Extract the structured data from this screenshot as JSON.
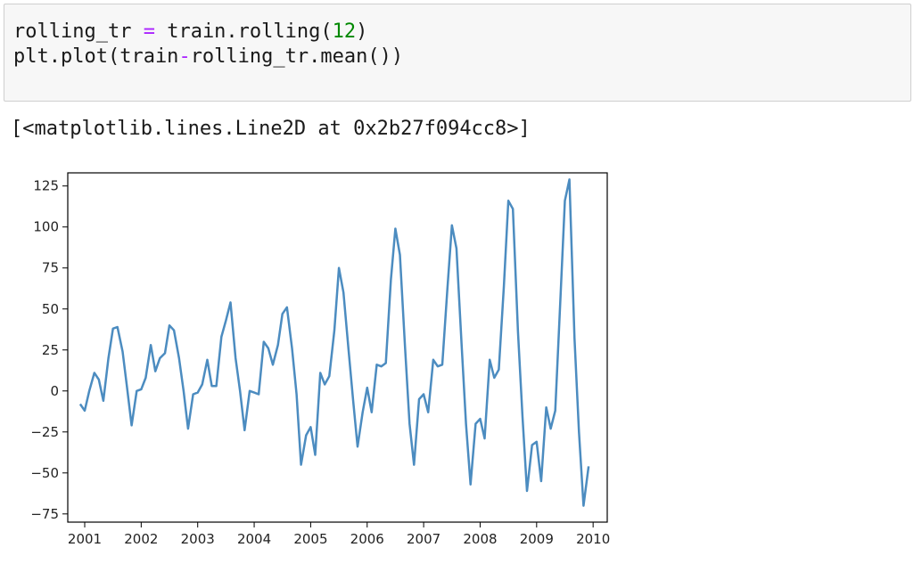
{
  "code": {
    "line1": {
      "var": "rolling_tr",
      "op": "=",
      "call": "train.rolling(",
      "arg": "12",
      "close": ")"
    },
    "line2": {
      "pre": "plt.plot(train",
      "op": "-",
      "post": "rolling_tr.mean())"
    }
  },
  "output": {
    "text": "[<matplotlib.lines.Line2D at 0x2b27f094cc8>]"
  },
  "colors": {
    "line": "#4c8cc0",
    "axes": "#000000"
  },
  "chart_data": {
    "type": "line",
    "xlabel": "",
    "ylabel": "",
    "xlim": [
      2000.7,
      2010.25
    ],
    "ylim": [
      -80,
      133
    ],
    "xticks": [
      2001,
      2002,
      2003,
      2004,
      2005,
      2006,
      2007,
      2008,
      2009,
      2010
    ],
    "xtick_labels": [
      "2001",
      "2002",
      "2003",
      "2004",
      "2005",
      "2006",
      "2007",
      "2008",
      "2009",
      "2010"
    ],
    "yticks": [
      125,
      100,
      75,
      50,
      25,
      0,
      -25,
      -50,
      -75
    ],
    "ytick_labels": [
      "125",
      "100",
      "75",
      "50",
      "25",
      "0",
      "−25",
      "−50",
      "−75"
    ],
    "series": [
      {
        "x": [
          2000.92,
          2001.0,
          2001.08,
          2001.17,
          2001.25,
          2001.33,
          2001.42,
          2001.5,
          2001.58,
          2001.67,
          2001.75,
          2001.83,
          2001.92,
          2002.0,
          2002.08,
          2002.17,
          2002.25,
          2002.33,
          2002.42,
          2002.5,
          2002.58,
          2002.67,
          2002.75,
          2002.83,
          2002.92,
          2003.0,
          2003.08,
          2003.17,
          2003.25,
          2003.33,
          2003.42,
          2003.5,
          2003.58,
          2003.67,
          2003.75,
          2003.83,
          2003.92,
          2004.0,
          2004.08,
          2004.17,
          2004.25,
          2004.33,
          2004.42,
          2004.5,
          2004.58,
          2004.67,
          2004.75,
          2004.83,
          2004.92,
          2005.0,
          2005.08,
          2005.17,
          2005.25,
          2005.33,
          2005.42,
          2005.5,
          2005.58,
          2005.67,
          2005.75,
          2005.83,
          2005.92,
          2006.0,
          2006.08,
          2006.17,
          2006.25,
          2006.33,
          2006.42,
          2006.5,
          2006.58,
          2006.67,
          2006.75,
          2006.83,
          2006.92,
          2007.0,
          2007.08,
          2007.17,
          2007.25,
          2007.33,
          2007.42,
          2007.5,
          2007.58,
          2007.67,
          2007.75,
          2007.83,
          2007.92,
          2008.0,
          2008.08,
          2008.17,
          2008.25,
          2008.33,
          2008.42,
          2008.5,
          2008.58,
          2008.67,
          2008.75,
          2008.83,
          2008.92,
          2009.0,
          2009.08,
          2009.17,
          2009.25,
          2009.33,
          2009.42,
          2009.5,
          2009.58,
          2009.67,
          2009.75,
          2009.83,
          2009.92
        ],
        "y": [
          -8,
          -12,
          0,
          11,
          7,
          -6,
          20,
          38,
          39,
          24,
          2,
          -21,
          0,
          1,
          8,
          28,
          12,
          20,
          23,
          40,
          37,
          20,
          0,
          -23,
          -2,
          -1,
          4,
          19,
          3,
          3,
          33,
          43,
          54,
          20,
          0,
          -24,
          0,
          -1,
          -2,
          30,
          26,
          16,
          28,
          47,
          51,
          26,
          -2,
          -45,
          -27,
          -22,
          -39,
          11,
          4,
          9,
          37,
          75,
          60,
          25,
          -5,
          -34,
          -13,
          2,
          -13,
          16,
          15,
          17,
          68,
          99,
          83,
          27,
          -20,
          -45,
          -5,
          -2,
          -13,
          19,
          15,
          16,
          62,
          101,
          87,
          29,
          -20,
          -57,
          -20,
          -17,
          -29,
          19,
          8,
          13,
          64,
          116,
          111,
          36,
          -16,
          -61,
          -33,
          -31,
          -55,
          -10,
          -23,
          -12,
          55,
          116,
          129,
          32,
          -25,
          -70,
          -46
        ]
      }
    ]
  }
}
